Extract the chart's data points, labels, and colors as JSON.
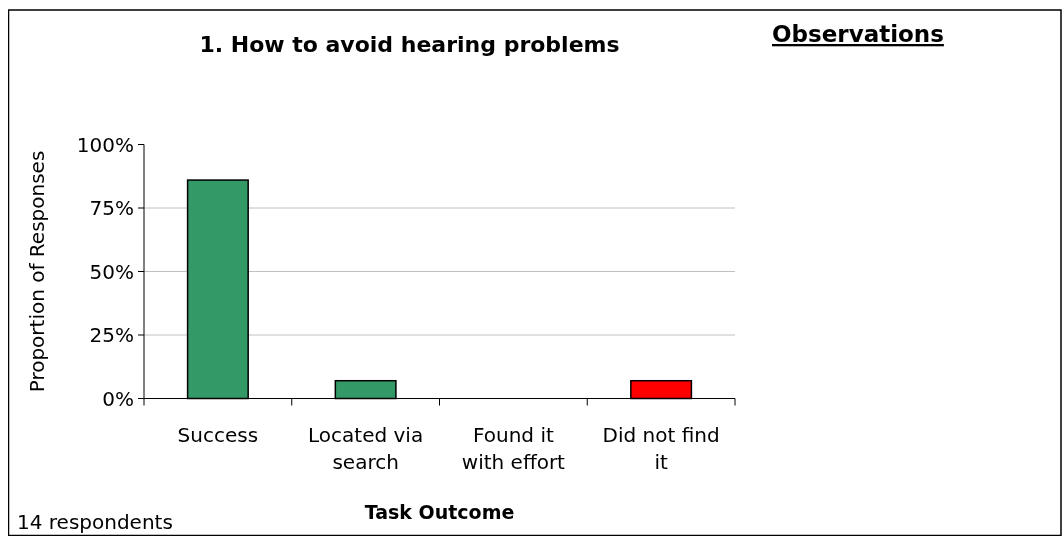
{
  "chart_data": {
    "type": "bar",
    "title": "1. How to avoid hearing problems",
    "xlabel": "Task Outcome",
    "ylabel": "Proportion of Responses",
    "categories": [
      "Success",
      "Located via search",
      "Found it with effort",
      "Did not find it"
    ],
    "values": [
      86,
      7,
      0,
      7
    ],
    "colors": [
      "#339966",
      "#339966",
      "#339966",
      "#ff0000"
    ],
    "ylim": [
      0,
      100
    ],
    "yticks": [
      {
        "value": 0,
        "label": "0%"
      },
      {
        "value": 25,
        "label": "25%"
      },
      {
        "value": 50,
        "label": "50%"
      },
      {
        "value": 75,
        "label": "75%"
      },
      {
        "value": 100,
        "label": "100%"
      }
    ],
    "grid": "y",
    "annotations": [
      "Observations",
      "14 respondents"
    ]
  }
}
